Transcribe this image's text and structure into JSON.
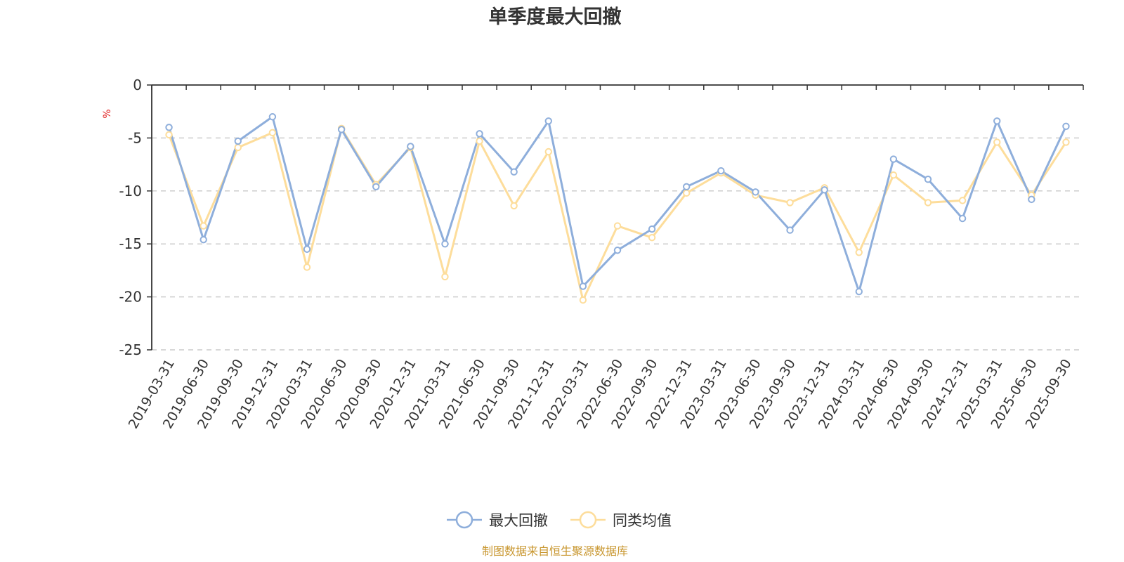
{
  "chart_data": {
    "type": "line",
    "title": "单季度最大回撤",
    "ylabel": "%",
    "ylim": [
      -25,
      0
    ],
    "yticks": [
      0,
      -5,
      -10,
      -15,
      -20,
      -25
    ],
    "grid": true,
    "legend_position": "bottom",
    "x": [
      "2019-03-31",
      "2019-06-30",
      "2019-09-30",
      "2019-12-31",
      "2020-03-31",
      "2020-06-30",
      "2020-09-30",
      "2020-12-31",
      "2021-03-31",
      "2021-06-30",
      "2021-09-30",
      "2021-12-31",
      "2022-03-31",
      "2022-06-30",
      "2022-09-30",
      "2022-12-31",
      "2023-03-31",
      "2023-06-30",
      "2023-09-30",
      "2023-12-31",
      "2024-03-31",
      "2024-06-30",
      "2024-09-30",
      "2024-12-31",
      "2025-03-31",
      "2025-06-30",
      "2025-09-30"
    ],
    "series": [
      {
        "name": "最大回撤",
        "color": "#8eaedb",
        "values": [
          -4.0,
          -14.6,
          -5.3,
          -3.0,
          -15.5,
          -4.2,
          -9.6,
          -5.8,
          -15.0,
          -4.6,
          -8.2,
          -3.4,
          -19.0,
          -15.6,
          -13.6,
          -9.6,
          -8.1,
          -10.1,
          -13.7,
          -9.9,
          -19.5,
          -7.0,
          -8.9,
          -12.6,
          -3.4,
          -10.8,
          -3.9
        ]
      },
      {
        "name": "同类均值",
        "color": "#fddd9b",
        "values": [
          -4.7,
          -13.3,
          -5.9,
          -4.5,
          -17.2,
          -4.1,
          -9.4,
          -5.9,
          -18.1,
          -5.3,
          -11.4,
          -6.3,
          -20.3,
          -13.3,
          -14.4,
          -10.2,
          -8.3,
          -10.4,
          -11.1,
          -9.7,
          -15.8,
          -8.5,
          -11.1,
          -10.9,
          -5.4,
          -10.4,
          -5.4
        ]
      }
    ]
  },
  "source_note": "制图数据来自恒生聚源数据库"
}
